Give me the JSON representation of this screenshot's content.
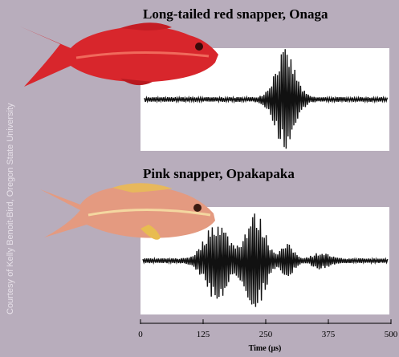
{
  "panels": [
    {
      "title": "Long-tailed red snapper, Onaga"
    },
    {
      "title": "Pink snapper, Opakapaka"
    }
  ],
  "axis": {
    "label": "Time (μs)",
    "xlim": [
      0,
      500
    ],
    "xticks": [
      0,
      125,
      250,
      375,
      500
    ]
  },
  "credit": "Courtesy of Kelly Benoit-Bird, Oregon State University"
}
